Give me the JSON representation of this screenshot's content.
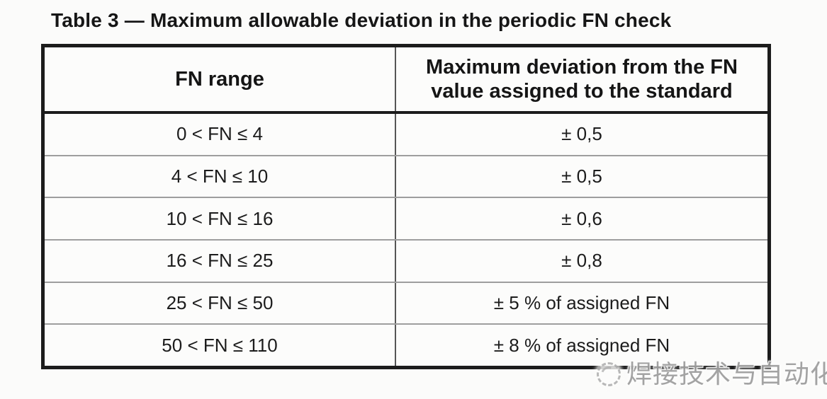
{
  "document": {
    "title": "Table 3 — Maximum allowable deviation in the periodic FN check"
  },
  "table": {
    "headers": {
      "fn_range": "FN range",
      "max_deviation": "Maximum deviation from the FN value assigned to the standard"
    },
    "rows": [
      {
        "range": "0 < FN ≤ 4",
        "deviation": "± 0,5"
      },
      {
        "range": "4 < FN ≤ 10",
        "deviation": "± 0,5"
      },
      {
        "range": "10 < FN ≤ 16",
        "deviation": "± 0,6"
      },
      {
        "range": "16 < FN ≤ 25",
        "deviation": "± 0,8"
      },
      {
        "range": "25 < FN ≤ 50",
        "deviation": "± 5 % of assigned FN"
      },
      {
        "range": "50 < FN ≤ 110",
        "deviation": "± 8 % of assigned FN"
      }
    ]
  },
  "watermark": {
    "icon": "dashed-circle-logo",
    "text": "焊接技术与自动化"
  },
  "colors": {
    "background": "#fbfbfa",
    "text": "#1a1a1a",
    "border_dark": "#1c1c1c",
    "grid_line": "#9e9e9e",
    "column_divider": "#565656",
    "watermark_gray": "#9f9f9f"
  }
}
